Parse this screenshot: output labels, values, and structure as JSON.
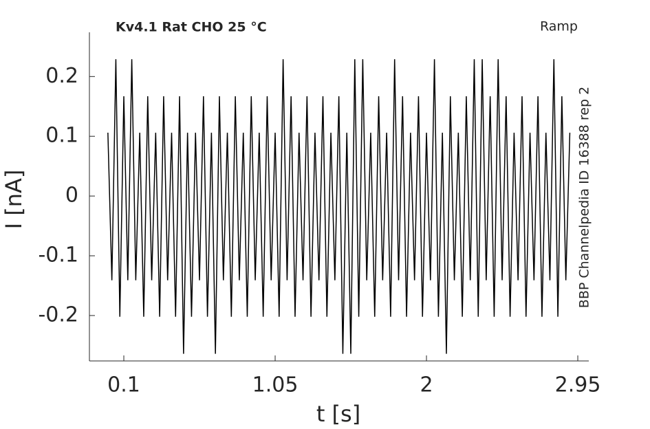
{
  "chart_data": {
    "type": "line",
    "title": "Kv4.1  Rat  CHO  25 °C",
    "protocol": "Ramp",
    "side_label": "BBP Channelpedia ID 16388 rep 2",
    "x_label": "t [s]",
    "y_label": "I [nA]",
    "xlim": [
      -0.116,
      3.019
    ],
    "ylim": [
      -0.276,
      0.274
    ],
    "xticks": [
      0.1,
      1.05,
      2,
      2.95
    ],
    "yticks": [
      -0.2,
      -0.1,
      0,
      0.1,
      0.2
    ],
    "x": [
      0,
      0.025,
      0.05,
      0.075,
      0.1,
      0.125,
      0.15,
      0.175,
      0.2,
      0.225,
      0.25,
      0.275,
      0.3,
      0.325,
      0.35,
      0.375,
      0.4,
      0.425,
      0.45,
      0.475,
      0.5,
      0.525,
      0.55,
      0.575,
      0.6,
      0.625,
      0.65,
      0.675,
      0.7,
      0.725,
      0.75,
      0.775,
      0.8,
      0.825,
      0.85,
      0.875,
      0.9,
      0.925,
      0.95,
      0.975,
      1,
      1.025,
      1.05,
      1.075,
      1.1,
      1.125,
      1.15,
      1.175,
      1.2,
      1.225,
      1.25,
      1.275,
      1.3,
      1.325,
      1.35,
      1.375,
      1.4,
      1.425,
      1.45,
      1.475,
      1.5,
      1.525,
      1.55,
      1.575,
      1.6,
      1.625,
      1.65,
      1.675,
      1.7,
      1.725,
      1.75,
      1.775,
      1.8,
      1.825,
      1.85,
      1.875,
      1.9,
      1.925,
      1.95,
      1.975,
      2,
      2.025,
      2.05,
      2.075,
      2.1,
      2.125,
      2.15,
      2.175,
      2.2,
      2.225,
      2.25,
      2.275,
      2.3,
      2.325,
      2.35,
      2.375,
      2.4,
      2.425,
      2.45,
      2.475,
      2.5,
      2.525,
      2.55,
      2.575,
      2.6,
      2.625,
      2.65,
      2.675,
      2.7,
      2.725,
      2.75,
      2.775,
      2.8,
      2.825,
      2.85,
      2.875,
      2.9
    ],
    "series": [
      {
        "color": "#000000",
        "values": [
          0.106,
          -0.141,
          0.229,
          -0.202,
          0.167,
          -0.141,
          0.229,
          -0.141,
          0.106,
          -0.202,
          0.167,
          -0.141,
          0.106,
          -0.202,
          0.167,
          -0.141,
          0.106,
          -0.202,
          0.167,
          -0.264,
          0.106,
          -0.202,
          0.106,
          -0.141,
          0.167,
          -0.202,
          0.106,
          -0.264,
          0.167,
          -0.141,
          0.106,
          -0.202,
          0.167,
          -0.141,
          0.106,
          -0.202,
          0.167,
          -0.141,
          0.106,
          -0.202,
          0.167,
          -0.141,
          0.106,
          -0.202,
          0.229,
          -0.141,
          0.167,
          -0.202,
          0.106,
          -0.141,
          0.167,
          -0.202,
          0.106,
          -0.141,
          0.167,
          -0.202,
          0.106,
          -0.141,
          0.167,
          -0.264,
          0.106,
          -0.264,
          0.229,
          -0.202,
          0.229,
          -0.141,
          0.106,
          -0.202,
          0.167,
          -0.141,
          0.106,
          -0.202,
          0.229,
          -0.141,
          0.167,
          -0.202,
          0.106,
          -0.141,
          0.167,
          -0.202,
          0.106,
          -0.141,
          0.229,
          -0.202,
          0.106,
          -0.264,
          0.167,
          -0.141,
          0.106,
          -0.202,
          0.167,
          -0.141,
          0.229,
          -0.202,
          0.229,
          -0.141,
          0.167,
          -0.202,
          0.229,
          -0.141,
          0.167,
          -0.202,
          0.106,
          -0.141,
          0.167,
          -0.202,
          0.106,
          -0.141,
          0.167,
          -0.202,
          0.106,
          -0.141,
          0.229,
          -0.202,
          0.167,
          -0.141,
          0.106
        ]
      }
    ]
  }
}
